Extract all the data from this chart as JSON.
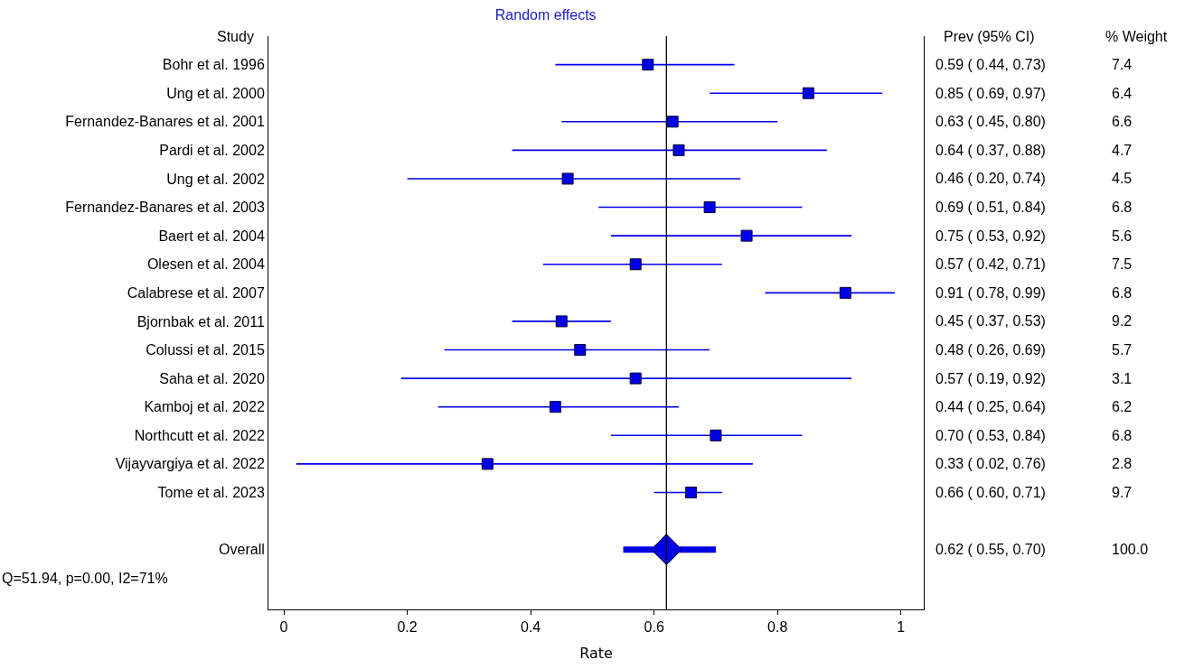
{
  "chart_data": {
    "type": "scatter",
    "orientation": "horizontal",
    "title": "Random effects",
    "xlabel": "Rate",
    "categories": [
      "Bohr et al. 1996",
      "Ung et al. 2000",
      "Fernandez-Banares et al. 2001",
      "Pardi et al. 2002",
      "Ung et al. 2002",
      "Fernandez-Banares et al. 2003",
      "Baert et al. 2004",
      "Olesen et al. 2004",
      "Calabrese et al. 2007",
      "Bjornbak et al. 2011",
      "Colussi et al. 2015",
      "Saha et al. 2020",
      "Kamboj et al. 2022",
      "Northcutt et al. 2022",
      "Vijayvargiya et al. 2022",
      "Tome et al. 2023",
      null,
      "Overall"
    ],
    "series": [
      {
        "color": "#0000e6",
        "marker": "square",
        "values": [
          0.59,
          0.85,
          0.63,
          0.64,
          0.46,
          0.69,
          0.75,
          0.57,
          0.91,
          0.45,
          0.48,
          0.57,
          0.44,
          0.7,
          0.33,
          0.66,
          null,
          null
        ],
        "errors": [
          [
            0.44,
            0.73
          ],
          [
            0.69,
            0.97
          ],
          [
            0.45,
            0.8
          ],
          [
            0.37,
            0.88
          ],
          [
            0.2,
            0.74
          ],
          [
            0.51,
            0.84
          ],
          [
            0.53,
            0.92
          ],
          [
            0.42,
            0.71
          ],
          [
            0.78,
            0.99
          ],
          [
            0.37,
            0.53
          ],
          [
            0.26,
            0.69
          ],
          [
            0.19,
            0.92
          ],
          [
            0.25,
            0.64
          ],
          [
            0.53,
            0.84
          ],
          [
            0.02,
            0.76
          ],
          [
            0.6,
            0.71
          ],
          null,
          null
        ],
        "value_labels": [
          "0.59 ( 0.44, 0.73)",
          "0.85 ( 0.69, 0.97)",
          "0.63 ( 0.45, 0.80)",
          "0.64 ( 0.37, 0.88)",
          "0.46 ( 0.20, 0.74)",
          "0.69 ( 0.51, 0.84)",
          "0.75 ( 0.53, 0.92)",
          "0.57 ( 0.42, 0.71)",
          "0.91 ( 0.78, 0.99)",
          "0.45 ( 0.37, 0.53)",
          "0.48 ( 0.26, 0.69)",
          "0.57 ( 0.19, 0.92)",
          "0.44 ( 0.25, 0.64)",
          "0.70 ( 0.53, 0.84)",
          "0.33 ( 0.02, 0.76)",
          "0.66 ( 0.60, 0.71)",
          null,
          null
        ]
      },
      {
        "color": "#0000e6",
        "marker": "diamond",
        "values": [
          null,
          null,
          null,
          null,
          null,
          null,
          null,
          null,
          null,
          null,
          null,
          null,
          null,
          null,
          null,
          null,
          null,
          0.62
        ],
        "errors": [
          null,
          null,
          null,
          null,
          null,
          null,
          null,
          null,
          null,
          null,
          null,
          null,
          null,
          null,
          null,
          null,
          null,
          [
            0.55,
            0.7
          ]
        ]
      }
    ],
    "xlim": [
      -0.025,
      1.037
    ],
    "xticks": [
      0,
      0.2,
      0.4,
      0.6,
      0.8,
      1
    ],
    "ref_lines": [
      {
        "axis": "x",
        "value": 0.62,
        "color": "#000000",
        "line_style": "solid"
      }
    ],
    "annotations": [
      "Study",
      "Prev (95% CI)",
      "% Weight",
      "Q=51.94, p=0.00, I2=71%",
      "7.4",
      "6.4",
      "6.6",
      "4.7",
      "4.5",
      "6.8",
      "5.6",
      "7.5",
      "6.8",
      "9.2",
      "5.7",
      "3.1",
      "6.2",
      "6.8",
      "2.8",
      "9.7",
      "100.0",
      "0.62 ( 0.55, 0.70)"
    ]
  }
}
